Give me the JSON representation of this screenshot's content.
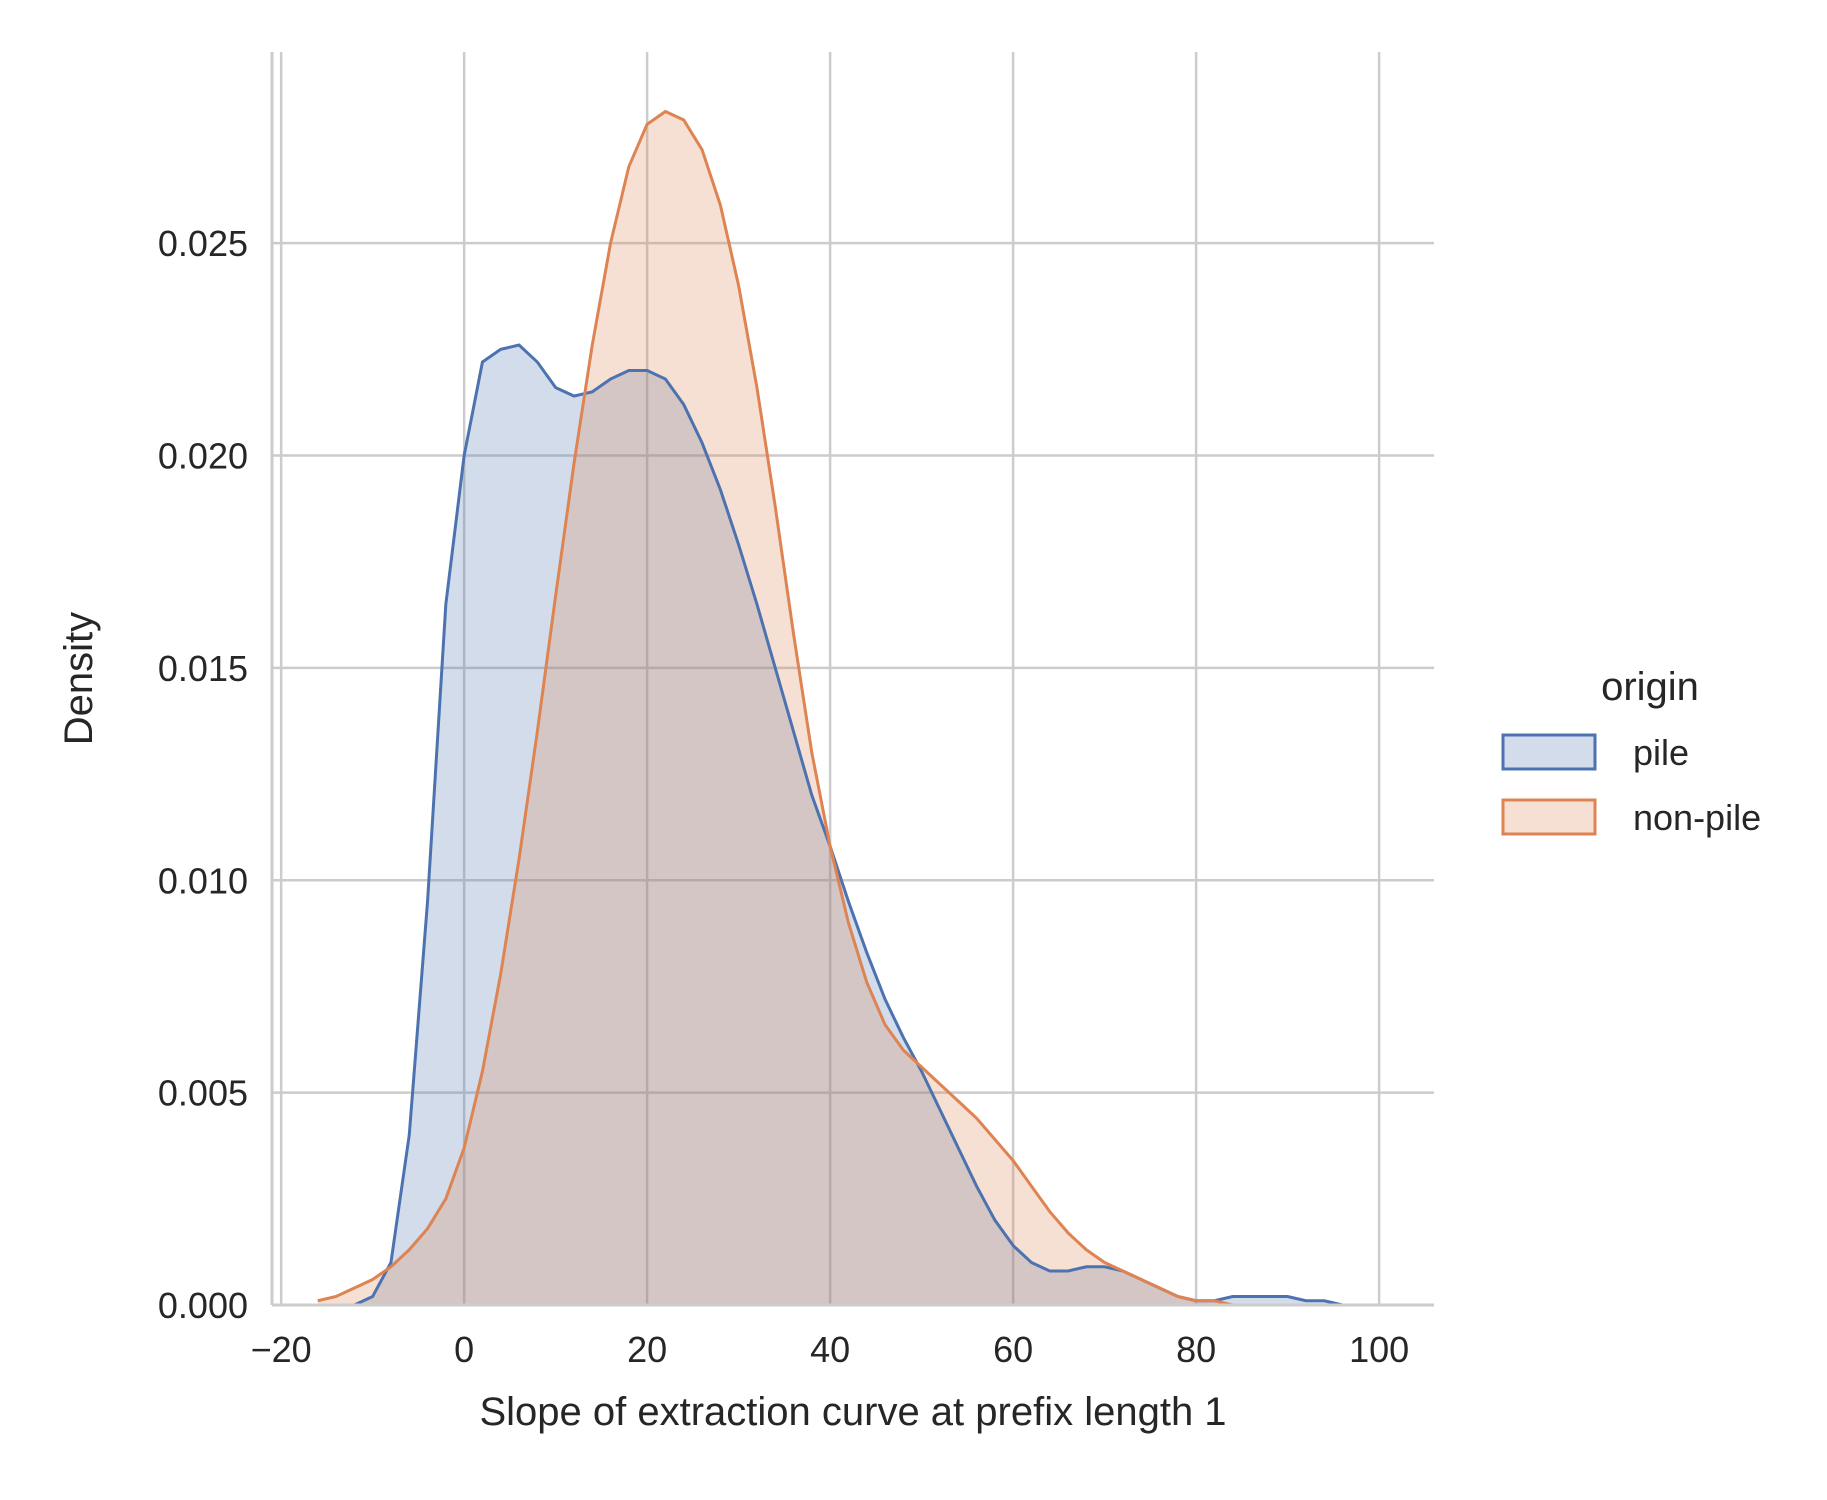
{
  "chart_data": {
    "type": "area",
    "kind": "kde",
    "title": "",
    "xlabel": "Slope of extraction curve at prefix length 1",
    "ylabel": "Density",
    "xlim": [
      -21,
      106
    ],
    "ylim": [
      0,
      0.0295
    ],
    "xticks": [
      -20,
      0,
      20,
      40,
      60,
      80,
      100
    ],
    "xtick_labels": [
      "−20",
      "0",
      "20",
      "40",
      "60",
      "80",
      "100"
    ],
    "yticks": [
      0.0,
      0.005,
      0.01,
      0.015,
      0.02,
      0.025
    ],
    "ytick_labels": [
      "0.000",
      "0.005",
      "0.010",
      "0.015",
      "0.020",
      "0.025"
    ],
    "grid": true,
    "legend": {
      "title": "origin",
      "placement": "right",
      "entries": [
        "pile",
        "non-pile"
      ]
    },
    "series": [
      {
        "name": "pile",
        "color": "#4c72b0",
        "fill": "#4c72b0",
        "x": [
          -12,
          -10,
          -8,
          -6,
          -4,
          -2,
          0,
          2,
          4,
          6,
          8,
          10,
          12,
          14,
          16,
          18,
          20,
          22,
          24,
          26,
          28,
          30,
          32,
          34,
          36,
          38,
          40,
          42,
          44,
          46,
          48,
          50,
          52,
          54,
          56,
          58,
          60,
          62,
          64,
          66,
          68,
          70,
          72,
          74,
          76,
          78,
          80,
          82,
          84,
          86,
          88,
          90,
          92,
          94,
          96,
          98,
          100
        ],
        "y": [
          0.0,
          0.0002,
          0.001,
          0.004,
          0.0095,
          0.0165,
          0.02,
          0.0222,
          0.0225,
          0.0226,
          0.0222,
          0.0216,
          0.0214,
          0.0215,
          0.0218,
          0.022,
          0.022,
          0.0218,
          0.0212,
          0.0203,
          0.0192,
          0.0179,
          0.0165,
          0.015,
          0.0135,
          0.012,
          0.0108,
          0.0095,
          0.0083,
          0.0072,
          0.0063,
          0.0055,
          0.0046,
          0.0037,
          0.0028,
          0.002,
          0.0014,
          0.001,
          0.0008,
          0.0008,
          0.0009,
          0.0009,
          0.0008,
          0.0006,
          0.0004,
          0.0002,
          0.0001,
          0.0001,
          0.0002,
          0.0002,
          0.0002,
          0.0002,
          0.0001,
          0.0001,
          0.0,
          0.0,
          0.0
        ]
      },
      {
        "name": "non-pile",
        "color": "#dd8452",
        "fill": "#dd8452",
        "x": [
          -16,
          -14,
          -12,
          -10,
          -8,
          -6,
          -4,
          -2,
          0,
          2,
          4,
          6,
          8,
          10,
          12,
          14,
          16,
          18,
          20,
          22,
          24,
          26,
          28,
          30,
          32,
          34,
          36,
          38,
          40,
          42,
          44,
          46,
          48,
          50,
          52,
          54,
          56,
          58,
          60,
          62,
          64,
          66,
          68,
          70,
          72,
          74,
          76,
          78,
          80,
          82,
          84,
          86,
          88
        ],
        "y": [
          0.0001,
          0.0002,
          0.0004,
          0.0006,
          0.0009,
          0.0013,
          0.0018,
          0.0025,
          0.0037,
          0.0055,
          0.0078,
          0.0105,
          0.0135,
          0.0167,
          0.0198,
          0.0226,
          0.025,
          0.0268,
          0.0278,
          0.0281,
          0.0279,
          0.0272,
          0.0259,
          0.024,
          0.0216,
          0.0188,
          0.0158,
          0.013,
          0.0108,
          0.009,
          0.0076,
          0.0066,
          0.006,
          0.0056,
          0.0052,
          0.0048,
          0.0044,
          0.0039,
          0.0034,
          0.0028,
          0.0022,
          0.0017,
          0.0013,
          0.001,
          0.0008,
          0.0006,
          0.0004,
          0.0002,
          0.0001,
          0.0001,
          0.0,
          0.0,
          0.0
        ]
      }
    ]
  }
}
